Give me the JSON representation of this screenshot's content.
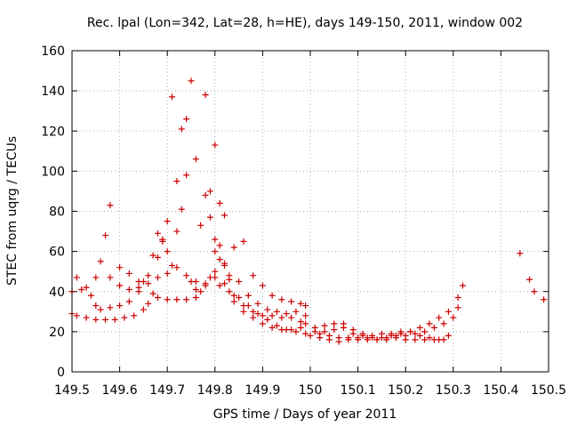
{
  "chart_data": {
    "type": "scatter",
    "title": "Rec. lpal (Lon=342, Lat=28, h=HE), days 149-150, 2011, window 002",
    "xlabel": "GPS time / Days of year 2011",
    "ylabel": "STEC from uqrg / TECUs",
    "xlim": [
      149.5,
      150.5
    ],
    "ylim": [
      0,
      160
    ],
    "xticks": [
      "149.5",
      "149.6",
      "149.7",
      "149.8",
      "149.9",
      "150",
      "150.1",
      "150.2",
      "150.3",
      "150.4",
      "150.5"
    ],
    "yticks": [
      "0",
      "20",
      "40",
      "60",
      "80",
      "100",
      "120",
      "140",
      "160"
    ],
    "grid": true,
    "marker": "+",
    "color": "#cc0000",
    "series": [
      {
        "name": "",
        "points": [
          [
            149.5,
            29
          ],
          [
            149.51,
            28
          ],
          [
            149.53,
            27
          ],
          [
            149.55,
            26
          ],
          [
            149.57,
            26
          ],
          [
            149.59,
            26
          ],
          [
            149.61,
            27
          ],
          [
            149.63,
            28
          ],
          [
            149.65,
            31
          ],
          [
            149.66,
            34
          ],
          [
            149.67,
            39
          ],
          [
            149.68,
            37
          ],
          [
            149.7,
            36
          ],
          [
            149.72,
            36
          ],
          [
            149.74,
            36
          ],
          [
            149.76,
            37
          ],
          [
            149.77,
            40
          ],
          [
            149.78,
            44
          ],
          [
            149.79,
            47
          ],
          [
            149.8,
            47
          ],
          [
            149.81,
            43
          ],
          [
            149.83,
            40
          ],
          [
            149.85,
            37
          ],
          [
            149.87,
            33
          ],
          [
            149.89,
            29
          ],
          [
            149.91,
            26
          ],
          [
            149.93,
            23
          ],
          [
            149.95,
            21
          ],
          [
            149.97,
            20
          ],
          [
            149.99,
            19
          ],
          [
            149.5,
            40
          ],
          [
            149.51,
            47
          ],
          [
            149.53,
            42
          ],
          [
            149.55,
            47
          ],
          [
            149.56,
            55
          ],
          [
            149.57,
            68
          ],
          [
            149.58,
            83
          ],
          [
            149.6,
            43
          ],
          [
            149.62,
            41
          ],
          [
            149.64,
            42
          ],
          [
            149.66,
            48
          ],
          [
            149.68,
            57
          ],
          [
            149.69,
            66
          ],
          [
            149.7,
            75
          ],
          [
            149.71,
            137
          ],
          [
            149.72,
            95
          ],
          [
            149.73,
            121
          ],
          [
            149.74,
            126
          ],
          [
            149.75,
            145
          ],
          [
            149.76,
            106
          ],
          [
            149.78,
            138
          ],
          [
            149.79,
            90
          ],
          [
            149.8,
            113
          ],
          [
            149.81,
            84
          ],
          [
            149.82,
            78
          ],
          [
            149.84,
            62
          ],
          [
            149.86,
            65
          ],
          [
            149.88,
            48
          ],
          [
            149.9,
            43
          ],
          [
            149.92,
            38
          ],
          [
            149.94,
            36
          ],
          [
            149.96,
            35
          ],
          [
            149.98,
            34
          ],
          [
            149.99,
            33
          ],
          [
            149.52,
            41
          ],
          [
            149.54,
            38
          ],
          [
            149.55,
            33
          ],
          [
            149.56,
            31
          ],
          [
            149.58,
            32
          ],
          [
            149.6,
            33
          ],
          [
            149.62,
            35
          ],
          [
            149.64,
            40
          ],
          [
            149.65,
            45
          ],
          [
            149.67,
            58
          ],
          [
            149.68,
            69
          ],
          [
            149.69,
            65
          ],
          [
            149.7,
            60
          ],
          [
            149.71,
            53
          ],
          [
            149.72,
            70
          ],
          [
            149.73,
            81
          ],
          [
            149.74,
            98
          ],
          [
            149.75,
            45
          ],
          [
            149.76,
            41
          ],
          [
            149.77,
            73
          ],
          [
            149.78,
            88
          ],
          [
            149.79,
            77
          ],
          [
            149.8,
            66
          ],
          [
            149.81,
            56
          ],
          [
            149.82,
            54
          ],
          [
            149.83,
            46
          ],
          [
            149.84,
            35
          ],
          [
            149.86,
            30
          ],
          [
            149.88,
            27
          ],
          [
            149.9,
            24
          ],
          [
            149.92,
            22
          ],
          [
            149.94,
            21
          ],
          [
            149.96,
            21
          ],
          [
            149.98,
            22
          ],
          [
            149.58,
            47
          ],
          [
            149.6,
            52
          ],
          [
            149.62,
            49
          ],
          [
            149.64,
            45
          ],
          [
            149.66,
            44
          ],
          [
            149.68,
            47
          ],
          [
            149.7,
            49
          ],
          [
            149.72,
            52
          ],
          [
            149.74,
            48
          ],
          [
            149.76,
            45
          ],
          [
            149.78,
            43
          ],
          [
            149.8,
            50
          ],
          [
            149.82,
            44
          ],
          [
            149.84,
            38
          ],
          [
            149.86,
            33
          ],
          [
            149.88,
            30
          ],
          [
            149.9,
            28
          ],
          [
            149.92,
            28
          ],
          [
            149.94,
            27
          ],
          [
            149.96,
            27
          ],
          [
            149.98,
            25
          ],
          [
            149.99,
            24
          ],
          [
            149.8,
            60
          ],
          [
            149.81,
            63
          ],
          [
            149.82,
            53
          ],
          [
            149.83,
            48
          ],
          [
            149.85,
            45
          ],
          [
            149.87,
            38
          ],
          [
            149.89,
            34
          ],
          [
            149.91,
            31
          ],
          [
            149.93,
            30
          ],
          [
            149.95,
            29
          ],
          [
            149.97,
            30
          ],
          [
            149.99,
            28
          ],
          [
            150.01,
            20
          ],
          [
            150.03,
            20
          ],
          [
            150.05,
            21
          ],
          [
            150.07,
            22
          ],
          [
            150.09,
            19
          ],
          [
            150.11,
            18
          ],
          [
            150.13,
            17
          ],
          [
            150.15,
            17
          ],
          [
            150.17,
            18
          ],
          [
            150.19,
            19
          ],
          [
            150.21,
            20
          ],
          [
            150.23,
            22
          ],
          [
            150.25,
            24
          ],
          [
            150.27,
            27
          ],
          [
            150.29,
            30
          ],
          [
            150.31,
            32
          ],
          [
            150.32,
            43
          ],
          [
            150.0,
            18
          ],
          [
            150.02,
            17
          ],
          [
            150.04,
            16
          ],
          [
            150.06,
            15
          ],
          [
            150.08,
            16
          ],
          [
            150.1,
            16
          ],
          [
            150.12,
            16
          ],
          [
            150.14,
            16
          ],
          [
            150.16,
            17
          ],
          [
            150.18,
            18
          ],
          [
            150.2,
            18
          ],
          [
            150.22,
            19
          ],
          [
            150.24,
            20
          ],
          [
            150.26,
            22
          ],
          [
            150.28,
            24
          ],
          [
            150.3,
            27
          ],
          [
            150.31,
            37
          ],
          [
            150.01,
            22
          ],
          [
            150.03,
            23
          ],
          [
            150.05,
            24
          ],
          [
            150.07,
            24
          ],
          [
            150.09,
            21
          ],
          [
            150.11,
            19
          ],
          [
            150.13,
            18
          ],
          [
            150.15,
            19
          ],
          [
            150.17,
            19
          ],
          [
            150.19,
            20
          ],
          [
            150.21,
            20
          ],
          [
            150.23,
            18
          ],
          [
            150.25,
            17
          ],
          [
            150.27,
            16
          ],
          [
            150.29,
            18
          ],
          [
            150.02,
            19
          ],
          [
            150.04,
            18
          ],
          [
            150.06,
            17
          ],
          [
            150.08,
            17
          ],
          [
            150.1,
            17
          ],
          [
            150.12,
            17
          ],
          [
            150.14,
            16
          ],
          [
            150.16,
            16
          ],
          [
            150.18,
            17
          ],
          [
            150.2,
            16
          ],
          [
            150.22,
            16
          ],
          [
            150.24,
            16
          ],
          [
            150.26,
            16
          ],
          [
            150.28,
            16
          ],
          [
            150.44,
            59
          ],
          [
            150.46,
            46
          ],
          [
            150.47,
            40
          ],
          [
            150.49,
            36
          ]
        ]
      }
    ]
  }
}
